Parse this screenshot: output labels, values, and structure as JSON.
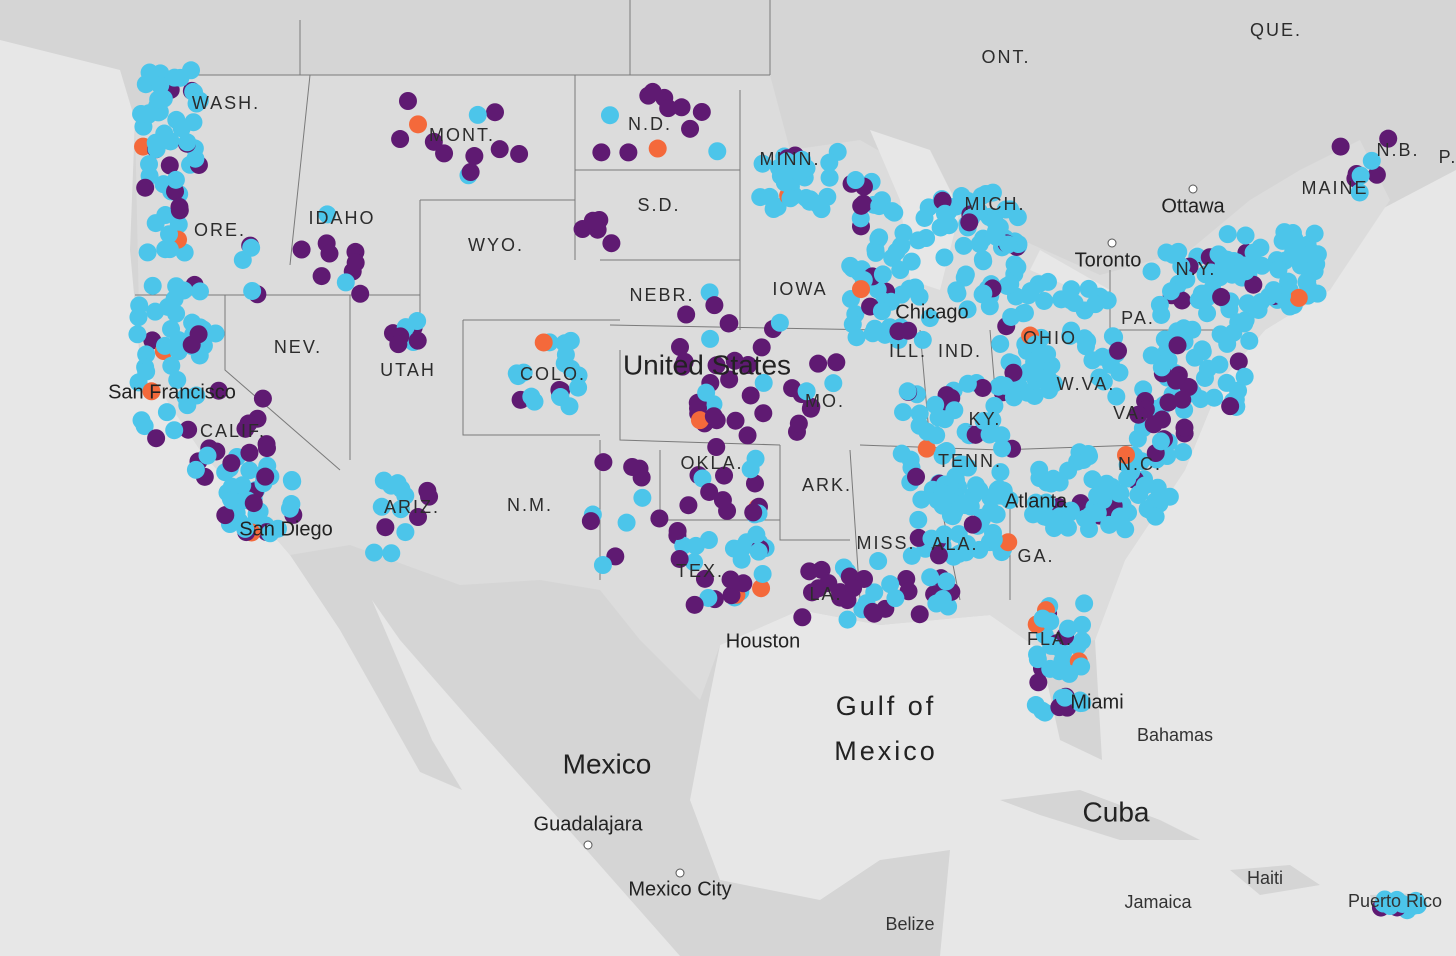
{
  "map": {
    "countries": [
      "United States",
      "Mexico",
      "Cuba",
      "Bahamas",
      "Jamaica",
      "Haiti",
      "Belize"
    ],
    "water": [
      "Gulf of",
      "Mexico"
    ],
    "provinces": [
      "QUE.",
      "ONT.",
      "N.B.",
      "P."
    ],
    "states": [
      "WASH.",
      "MONT.",
      "N.D.",
      "MINN.",
      "S.D.",
      "IDAHO",
      "ORE.",
      "WYO.",
      "NEBR.",
      "IOWA",
      "NEV.",
      "UTAH",
      "COLO.",
      "CALIF.",
      "MO.",
      "KY.",
      "W.VA.",
      "VA.",
      "OKLA.",
      "ARK.",
      "TENN.",
      "N.M.",
      "ARIZ.",
      "MISS.",
      "ALA.",
      "GA.",
      "TEX.",
      "LA.",
      "MAINE",
      "N.Y.",
      "PA.",
      "ILL.",
      "IND.",
      "OHIO",
      "MICH.",
      "FLA.",
      "N.C."
    ],
    "cities": [
      "Ottawa",
      "Toronto",
      "San Francisco",
      "San Diego",
      "Chicago",
      "Atlanta",
      "Houston",
      "Miami",
      "Guadalajara",
      "Mexico City",
      "Puerto Rico"
    ]
  }
}
